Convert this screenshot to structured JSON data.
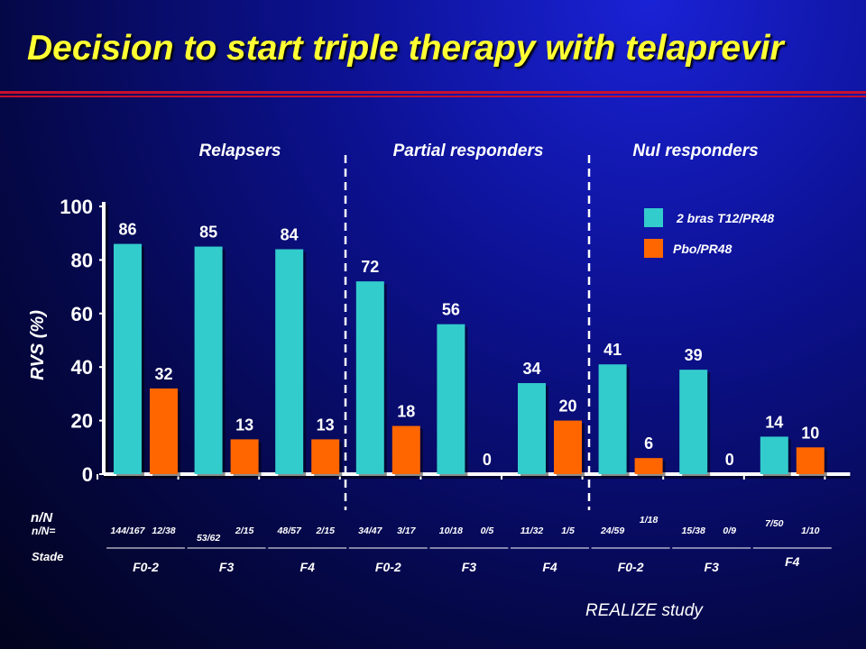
{
  "title": "Decision to start triple therapy with telaprevir",
  "footer": "REALIZE study",
  "colors": {
    "series1": "#33cccc",
    "series2": "#ff6600",
    "title": "#ffff33",
    "rule": "#c8102e"
  },
  "row_labels": {
    "nn_top": "n/N",
    "nn": "n/N=",
    "stade": "Stade"
  },
  "chart_data": {
    "type": "bar",
    "ylabel": "RVS (%)",
    "ylim": [
      0,
      100
    ],
    "yticks": [
      0,
      20,
      40,
      60,
      80,
      100
    ],
    "legend_position": "top-right",
    "groups": [
      {
        "name": "Relapsers",
        "categories": [
          "F0-2",
          "F3",
          "F4"
        ]
      },
      {
        "name": "Partial responders",
        "categories": [
          "F0-2",
          "F3",
          "F4"
        ]
      },
      {
        "name": "Nul responders",
        "categories": [
          "F0-2",
          "F3",
          "F4"
        ]
      }
    ],
    "categories": [
      "F0-2",
      "F3",
      "F4",
      "F0-2",
      "F3",
      "F4",
      "F0-2",
      "F3",
      "F4"
    ],
    "series": [
      {
        "name": "2 bras T12/PR48",
        "values": [
          86,
          85,
          84,
          72,
          56,
          34,
          41,
          39,
          14
        ],
        "labels": [
          "86",
          "85",
          "84",
          "72",
          "56",
          "34",
          "41",
          "39",
          "14"
        ],
        "n": [
          "144/167",
          "53/62",
          "48/57",
          "34/47",
          "10/18",
          "11/32",
          "24/59",
          "15/38",
          "7/50"
        ]
      },
      {
        "name": "Pbo/PR48",
        "values": [
          32,
          13,
          13,
          18,
          0,
          20,
          6,
          0,
          10
        ],
        "labels": [
          "32",
          "13",
          "13",
          "18",
          "0",
          "20",
          "6",
          "0",
          "10"
        ],
        "n": [
          "12/38",
          "2/15",
          "2/15",
          "3/17",
          "0/5",
          "1/5",
          "1/18",
          "0/9",
          "1/10"
        ]
      }
    ]
  }
}
